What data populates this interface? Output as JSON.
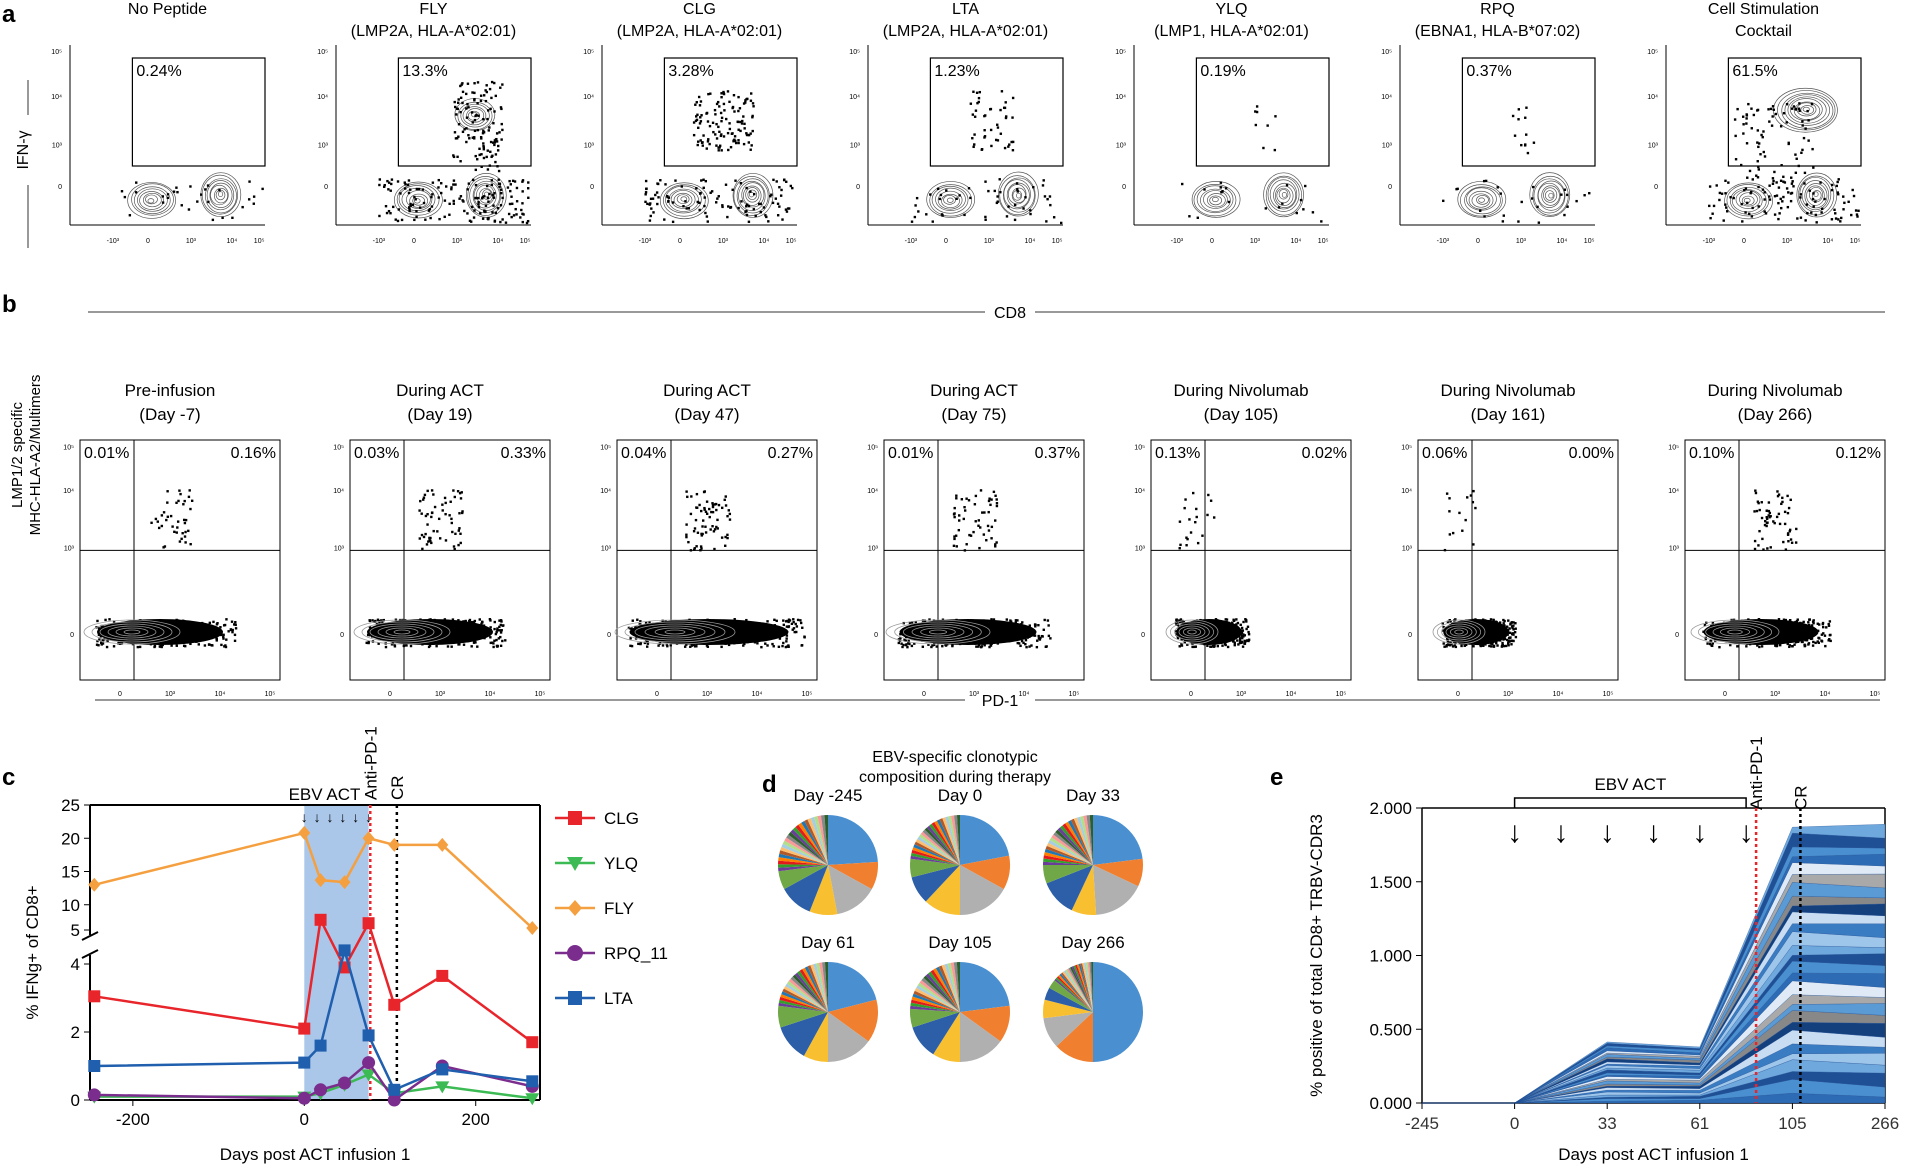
{
  "panels": {
    "a": {
      "label": "a",
      "ylabel": "IFN-γ",
      "xlabel": "CD8",
      "tick_labels": [
        "-10³",
        "0",
        "10³",
        "10⁴",
        "10⁵"
      ],
      "ytick_labels": [
        "0",
        "10³",
        "10⁴",
        "10⁵"
      ],
      "plots": [
        {
          "title1": "No Peptide",
          "title2": "",
          "gate_pct": "0.24%"
        },
        {
          "title1": "FLY",
          "title2": "(LMP2A, HLA-A*02:01)",
          "gate_pct": "13.3%"
        },
        {
          "title1": "CLG",
          "title2": "(LMP2A, HLA-A*02:01)",
          "gate_pct": "3.28%"
        },
        {
          "title1": "LTA",
          "title2": "(LMP2A, HLA-A*02:01)",
          "gate_pct": "1.23%"
        },
        {
          "title1": "YLQ",
          "title2": "(LMP1, HLA-A*02:01)",
          "gate_pct": "0.19%"
        },
        {
          "title1": "RPQ",
          "title2": "(EBNA1, HLA-B*07:02)",
          "gate_pct": "0.37%"
        },
        {
          "title1": "Cell Stimulation",
          "title2": "Cocktail",
          "gate_pct": "61.5%"
        }
      ]
    },
    "b": {
      "label": "b",
      "ylabel1": "LMP1/2 specific",
      "ylabel2": "MHC-HLA-A2/Multimers",
      "xlabel": "PD-1",
      "tick_labels": [
        "0",
        "10³",
        "10⁴",
        "10⁵"
      ],
      "ytick_labels": [
        "0",
        "10³",
        "10⁴",
        "10⁵"
      ],
      "plots": [
        {
          "title1": "Pre-infusion",
          "title2": "(Day -7)",
          "q_left": "0.01%",
          "q_right": "0.16%"
        },
        {
          "title1": "During ACT",
          "title2": "(Day 19)",
          "q_left": "0.03%",
          "q_right": "0.33%"
        },
        {
          "title1": "During ACT",
          "title2": "(Day 47)",
          "q_left": "0.04%",
          "q_right": "0.27%"
        },
        {
          "title1": "During ACT",
          "title2": "(Day 75)",
          "q_left": "0.01%",
          "q_right": "0.37%"
        },
        {
          "title1": "During Nivolumab",
          "title2": "(Day 105)",
          "q_left": "0.13%",
          "q_right": "0.02%"
        },
        {
          "title1": "During Nivolumab",
          "title2": "(Day 161)",
          "q_left": "0.06%",
          "q_right": "0.00%"
        },
        {
          "title1": "During Nivolumab",
          "title2": "(Day 266)",
          "q_left": "0.10%",
          "q_right": "0.12%"
        }
      ]
    },
    "c": {
      "label": "c",
      "ebv_act_label": "EBV ACT",
      "anti_pd1_label": "Anti-PD-1",
      "cr_label": "CR"
    },
    "d": {
      "label": "d",
      "title1": "EBV-specific clonotypic",
      "title2": "composition during therapy",
      "pies": [
        {
          "label": "Day -245",
          "slices": [
            24,
            9,
            14,
            9,
            11,
            6,
            27
          ]
        },
        {
          "label": "Day 0",
          "slices": [
            22,
            11,
            17,
            12,
            9,
            6,
            23
          ]
        },
        {
          "label": "Day 33",
          "slices": [
            23,
            9,
            17,
            8,
            12,
            6,
            25
          ]
        },
        {
          "label": "Day 61",
          "slices": [
            21,
            14,
            15,
            8,
            12,
            7,
            23
          ]
        },
        {
          "label": "Day 105",
          "slices": [
            23,
            12,
            15,
            9,
            11,
            6,
            24
          ]
        },
        {
          "label": "Day 266",
          "slices": [
            50,
            13,
            10,
            6,
            4,
            3,
            14
          ]
        }
      ],
      "colors": [
        "#4a90d0",
        "#f08030",
        "#b0b0b0",
        "#f8c030",
        "#2d5ea8",
        "#70a848",
        "#cccccc"
      ]
    },
    "e": {
      "label": "e",
      "ebv_act_label": "EBV ACT",
      "anti_pd1_label": "Anti-PD-1",
      "cr_label": "CR"
    }
  },
  "chart_data": [
    {
      "type": "line",
      "title": "",
      "xlabel": "Days post ACT infusion 1",
      "ylabel": "% IFNg+ of CD8+",
      "xlim": [
        -250,
        275
      ],
      "xticks": [
        -200,
        0,
        200
      ],
      "yticks_lower": [
        0,
        2,
        4
      ],
      "yticks_upper": [
        5,
        10,
        15,
        20,
        25
      ],
      "series": [
        {
          "name": "CLG",
          "color": "#e8252b",
          "marker": "square",
          "x": [
            -245,
            0,
            19,
            47,
            75,
            105,
            161,
            266
          ],
          "y": [
            3.05,
            2.1,
            5.3,
            3.9,
            5.2,
            2.8,
            3.65,
            1.7
          ]
        },
        {
          "name": "YLQ",
          "color": "#3cba54",
          "marker": "triangle-down",
          "x": [
            -245,
            0,
            19,
            47,
            75,
            105,
            161,
            266
          ],
          "y": [
            0.1,
            0.1,
            0.2,
            0.45,
            0.75,
            0.2,
            0.4,
            0.05
          ]
        },
        {
          "name": "FLY",
          "color": "#f5a040",
          "marker": "diamond",
          "x": [
            -245,
            0,
            19,
            47,
            75,
            105,
            161,
            266
          ],
          "y": [
            13,
            20.8,
            13.7,
            13.4,
            20.0,
            19.0,
            19.0,
            6.5
          ]
        },
        {
          "name": "RPQ_11",
          "color": "#7b2d8e",
          "marker": "circle",
          "x": [
            -245,
            0,
            19,
            47,
            75,
            105,
            161,
            266
          ],
          "y": [
            0.15,
            0.05,
            0.3,
            0.5,
            1.1,
            0.0,
            1.0,
            0.4
          ]
        },
        {
          "name": "LTA",
          "color": "#1f5fae",
          "marker": "square",
          "x": [
            -245,
            0,
            19,
            47,
            75,
            105,
            161,
            266
          ],
          "y": [
            1.0,
            1.1,
            1.6,
            4.4,
            1.9,
            0.3,
            0.9,
            0.55
          ]
        }
      ]
    },
    {
      "type": "pie",
      "title": "EBV-specific clonotypic composition during therapy",
      "categories": [
        "Day -245",
        "Day 0",
        "Day 33",
        "Day 61",
        "Day 105",
        "Day 266"
      ]
    },
    {
      "type": "area",
      "title": "",
      "xlabel": "Days post ACT infusion 1",
      "ylabel": "% positive of total CD8+ TRBV-CDR3",
      "categories": [
        "-245",
        "0",
        "33",
        "61",
        "105",
        "266"
      ],
      "ytick_labels": [
        "0.000",
        "0.500",
        "1.000",
        "1.500",
        "2.000"
      ],
      "ylim": [
        0,
        2.0
      ],
      "total_values": [
        0.0,
        0.0,
        0.42,
        0.38,
        1.87,
        1.89
      ]
    }
  ]
}
